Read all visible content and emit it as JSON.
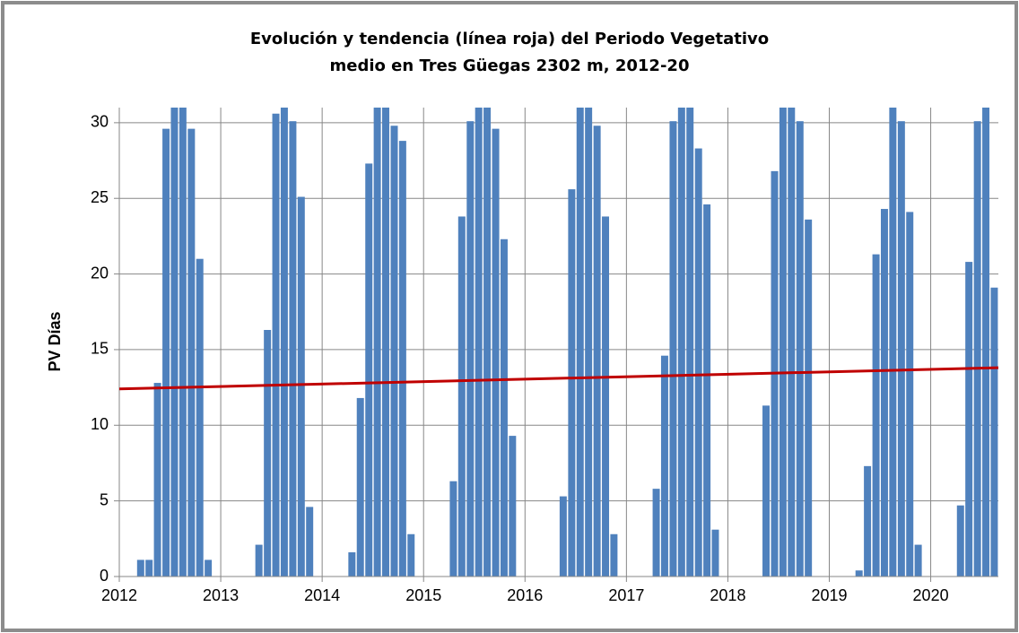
{
  "chart_data": {
    "type": "bar",
    "title": [
      "Evolución y tendencia (línea roja) del Periodo Vegetativo",
      "medio en Tres Güegas 2302 m, 2012-20"
    ],
    "ylabel": "PV Días",
    "color": "#4f81bd",
    "x": [
      2012,
      2012.083,
      2012.167,
      2012.25,
      2012.333,
      2012.417,
      2012.5,
      2012.583,
      2012.667,
      2012.75,
      2012.833,
      2012.917,
      2013,
      2013.083,
      2013.167,
      2013.25,
      2013.333,
      2013.417,
      2013.5,
      2013.583,
      2013.667,
      2013.75,
      2013.833,
      2013.917,
      2014,
      2014.083,
      2014.167,
      2014.25,
      2014.333,
      2014.417,
      2014.5,
      2014.583,
      2014.667,
      2014.75,
      2014.833,
      2014.917,
      2015,
      2015.083,
      2015.167,
      2015.25,
      2015.333,
      2015.417,
      2015.5,
      2015.583,
      2015.667,
      2015.75,
      2015.833,
      2015.917,
      2016,
      2016.083,
      2016.167,
      2016.25,
      2016.333,
      2016.417,
      2016.5,
      2016.583,
      2016.667,
      2016.75,
      2016.833,
      2016.917,
      2017,
      2017.083,
      2017.167,
      2017.25,
      2017.333,
      2017.417,
      2017.5,
      2017.583,
      2017.667,
      2017.75,
      2017.833,
      2017.917,
      2018,
      2018.083,
      2018.167,
      2018.25,
      2018.333,
      2018.417,
      2018.5,
      2018.583,
      2018.667,
      2018.75,
      2018.833,
      2018.917,
      2019,
      2019.083,
      2019.167,
      2019.25,
      2019.333,
      2019.417,
      2019.5,
      2019.583,
      2019.667,
      2019.75,
      2019.833,
      2019.917,
      2020,
      2020.083,
      2020.167,
      2020.25,
      2020.333,
      2020.417,
      2020.5,
      2020.583
    ],
    "values": [
      0,
      0,
      1.1,
      1.1,
      12.8,
      29.6,
      31,
      31,
      29.6,
      21,
      1.1,
      0,
      0,
      0,
      0,
      0,
      2.1,
      16.3,
      30.6,
      31,
      30.1,
      25.1,
      4.6,
      0,
      0,
      0,
      0,
      1.6,
      11.8,
      27.3,
      31,
      31,
      29.8,
      28.8,
      2.8,
      0,
      0,
      0,
      0,
      6.3,
      23.8,
      30.1,
      31,
      31,
      29.6,
      22.3,
      9.3,
      0,
      0,
      0,
      0,
      0,
      5.3,
      25.6,
      31,
      31,
      29.8,
      23.8,
      2.8,
      0,
      0,
      0,
      0,
      5.8,
      14.6,
      30.1,
      31,
      31,
      28.3,
      24.6,
      3.1,
      0,
      0,
      0,
      0,
      0,
      11.3,
      26.8,
      31,
      31,
      30.1,
      23.6,
      0,
      0,
      0,
      0,
      0,
      0.4,
      7.3,
      21.3,
      24.3,
      31,
      30.1,
      24.1,
      2.1,
      0,
      0,
      0,
      0,
      4.7,
      20.8,
      30.1,
      31,
      19.1
    ],
    "trend": {
      "color": "#c00000",
      "x": [
        2012,
        2020.667
      ],
      "values": [
        12.4,
        13.8
      ]
    },
    "xlim": [
      2012,
      2020.667
    ],
    "xticks": [
      2012,
      2013,
      2014,
      2015,
      2016,
      2017,
      2018,
      2019,
      2020
    ],
    "ylim": [
      0,
      31
    ],
    "yticks": [
      0,
      5,
      10,
      15,
      20,
      25,
      30
    ],
    "grid": true
  }
}
